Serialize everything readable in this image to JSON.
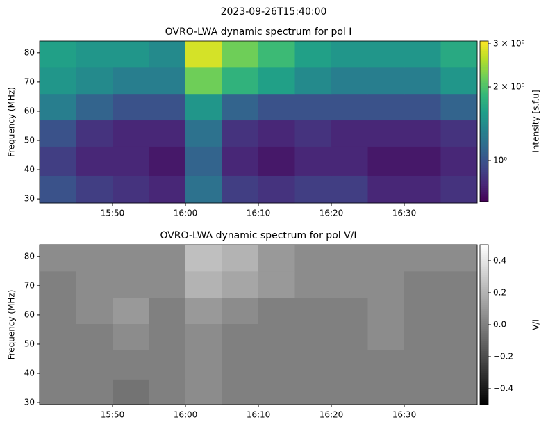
{
  "title": "2023-09-26T15:40:00",
  "chart_data": [
    {
      "type": "heatmap",
      "title": "OVRO-LWA dynamic spectrum for pol I",
      "ylabel": "Frequency (MHz)",
      "colorbar_label": "Intensity [s.f.u]",
      "cmap": "viridis",
      "zscale": "log",
      "xlim": [
        "15:40",
        "16:40"
      ],
      "xticks": [
        "15:50",
        "16:00",
        "16:10",
        "16:20",
        "16:30"
      ],
      "ylim": [
        28.6,
        84
      ],
      "yticks": [
        30,
        40,
        50,
        60,
        70,
        80
      ],
      "zlim": [
        0.68,
        3.08
      ],
      "zticks": [
        {
          "value": 1,
          "label": "10⁰"
        },
        {
          "value": 2,
          "label": "2 × 10⁰"
        },
        {
          "value": 3,
          "label": "3 × 10⁰"
        }
      ],
      "time_bins": [
        "15:40",
        "15:45",
        "15:50",
        "15:55",
        "16:00",
        "16:05",
        "16:10",
        "16:15",
        "16:20",
        "16:25",
        "16:30",
        "16:35",
        "16:40"
      ],
      "freq_bins": [
        28.6,
        38,
        48,
        57,
        66,
        75,
        84
      ],
      "z": [
        [
          1.0,
          0.9,
          0.85,
          0.8,
          1.2,
          0.9,
          0.85,
          0.9,
          0.9,
          0.8,
          0.8,
          0.85
        ],
        [
          0.9,
          0.8,
          0.8,
          0.75,
          1.1,
          0.8,
          0.75,
          0.8,
          0.8,
          0.75,
          0.75,
          0.8
        ],
        [
          1.0,
          0.85,
          0.8,
          0.8,
          1.2,
          0.85,
          0.8,
          0.85,
          0.8,
          0.8,
          0.8,
          0.85
        ],
        [
          1.3,
          1.1,
          1.0,
          1.0,
          1.5,
          1.1,
          1.0,
          1.0,
          1.0,
          1.0,
          1.0,
          1.1
        ],
        [
          1.5,
          1.4,
          1.3,
          1.3,
          2.2,
          1.8,
          1.6,
          1.4,
          1.3,
          1.3,
          1.3,
          1.5
        ],
        [
          1.6,
          1.5,
          1.5,
          1.4,
          2.8,
          2.2,
          1.9,
          1.6,
          1.5,
          1.5,
          1.5,
          1.7
        ]
      ]
    },
    {
      "type": "heatmap",
      "title": "OVRO-LWA dynamic spectrum for pol V/I",
      "ylabel": "Frequency (MHz)",
      "colorbar_label": "V/I",
      "cmap": "gray",
      "zscale": "linear",
      "xlim": [
        "15:40",
        "16:40"
      ],
      "xticks": [
        "15:50",
        "16:00",
        "16:10",
        "16:20",
        "16:30"
      ],
      "ylim": [
        29.3,
        84
      ],
      "yticks": [
        30,
        40,
        50,
        60,
        70,
        80
      ],
      "zlim": [
        -0.5,
        0.5
      ],
      "zticks": [
        {
          "value": -0.4,
          "label": "−0.4"
        },
        {
          "value": -0.2,
          "label": "−0.2"
        },
        {
          "value": 0,
          "label": "0.0"
        },
        0.2,
        0.4
      ],
      "time_bins": [
        "15:40",
        "15:45",
        "15:50",
        "15:55",
        "16:00",
        "16:05",
        "16:10",
        "16:15",
        "16:20",
        "16:25",
        "16:30",
        "16:35",
        "16:40"
      ],
      "freq_bins": [
        29.3,
        38,
        48,
        57,
        66,
        75,
        84
      ],
      "z": [
        [
          0,
          0,
          -0.05,
          0,
          0.05,
          0,
          0,
          0,
          0,
          0,
          0,
          0
        ],
        [
          0,
          0,
          0,
          0,
          0.05,
          0,
          0,
          0,
          0,
          0,
          0,
          0
        ],
        [
          0,
          0,
          0.05,
          0,
          0.05,
          0,
          0,
          0,
          0,
          0.05,
          0,
          0
        ],
        [
          0,
          0.05,
          0.1,
          0,
          0.1,
          0.05,
          0,
          0,
          0,
          0.05,
          0,
          0
        ],
        [
          0,
          0.05,
          0.05,
          0.05,
          0.2,
          0.15,
          0.1,
          0.05,
          0.05,
          0.05,
          0,
          0
        ],
        [
          0.05,
          0.05,
          0.05,
          0.05,
          0.25,
          0.2,
          0.1,
          0.05,
          0.05,
          0.05,
          0.05,
          0.05
        ]
      ]
    }
  ]
}
